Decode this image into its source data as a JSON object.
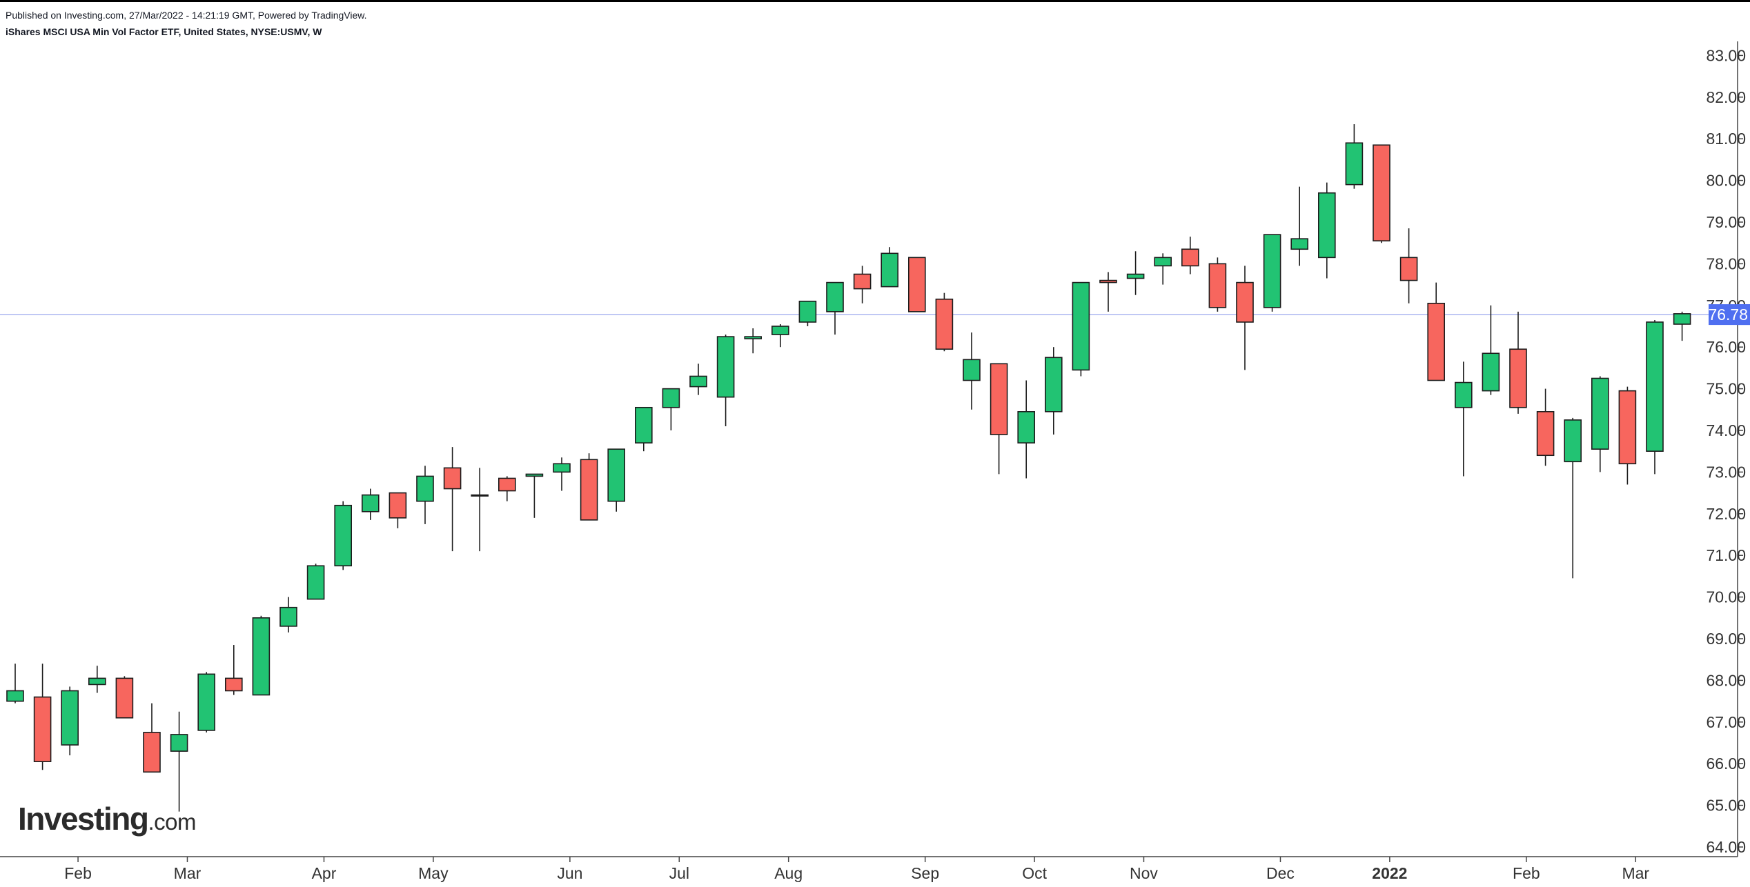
{
  "header": {
    "published": "Published on Investing.com, 27/Mar/2022 - 14:21:19 GMT, Powered by TradingView.",
    "instrument": "iShares MSCI USA Min Vol Factor ETF, United States, NYSE:USMV, W"
  },
  "logo": {
    "main": "Investing",
    "suffix": ".com"
  },
  "colors": {
    "up": "#22c373",
    "down": "#f7665e",
    "outline": "#1c1c1c",
    "price_line": "#aab4f0",
    "price_tag": "#4f6ff0",
    "axis": "#444444",
    "text": "#333333"
  },
  "chart_data": {
    "type": "candlestick",
    "interval": "W",
    "ylim": [
      63.8,
      83.2
    ],
    "y_ticks": [
      "64.00",
      "65.00",
      "66.00",
      "67.00",
      "68.00",
      "69.00",
      "70.00",
      "71.00",
      "72.00",
      "73.00",
      "74.00",
      "75.00",
      "76.00",
      "77.00",
      "78.00",
      "79.00",
      "80.00",
      "81.00",
      "82.00",
      "83.00"
    ],
    "x_ticks": [
      {
        "label": "Feb",
        "index": 2.3,
        "bold": false
      },
      {
        "label": "Mar",
        "index": 6.3,
        "bold": false
      },
      {
        "label": "Apr",
        "index": 11.3,
        "bold": false
      },
      {
        "label": "May",
        "index": 15.3,
        "bold": false
      },
      {
        "label": "Jun",
        "index": 20.3,
        "bold": false
      },
      {
        "label": "Jul",
        "index": 24.3,
        "bold": false
      },
      {
        "label": "Aug",
        "index": 28.3,
        "bold": false
      },
      {
        "label": "Sep",
        "index": 33.3,
        "bold": false
      },
      {
        "label": "Oct",
        "index": 37.3,
        "bold": false
      },
      {
        "label": "Nov",
        "index": 41.3,
        "bold": false
      },
      {
        "label": "Dec",
        "index": 46.3,
        "bold": false
      },
      {
        "label": "2022",
        "index": 50.3,
        "bold": true
      },
      {
        "label": "Feb",
        "index": 55.3,
        "bold": false
      },
      {
        "label": "Mar",
        "index": 59.3,
        "bold": false
      }
    ],
    "last_price": 76.78,
    "last_price_label": "76.78",
    "candles": [
      {
        "o": 67.5,
        "h": 68.4,
        "l": 67.45,
        "c": 67.75
      },
      {
        "o": 67.6,
        "h": 68.4,
        "l": 65.85,
        "c": 66.05
      },
      {
        "o": 66.45,
        "h": 67.85,
        "l": 66.2,
        "c": 67.75
      },
      {
        "o": 67.9,
        "h": 68.35,
        "l": 67.7,
        "c": 68.05
      },
      {
        "o": 68.05,
        "h": 68.1,
        "l": 67.1,
        "c": 67.1
      },
      {
        "o": 66.75,
        "h": 67.45,
        "l": 65.8,
        "c": 65.8
      },
      {
        "o": 66.3,
        "h": 67.25,
        "l": 64.85,
        "c": 66.7
      },
      {
        "o": 66.8,
        "h": 68.2,
        "l": 66.75,
        "c": 68.15
      },
      {
        "o": 68.05,
        "h": 68.85,
        "l": 67.65,
        "c": 67.75
      },
      {
        "o": 67.65,
        "h": 69.55,
        "l": 67.65,
        "c": 69.5
      },
      {
        "o": 69.3,
        "h": 70.0,
        "l": 69.15,
        "c": 69.75
      },
      {
        "o": 69.95,
        "h": 70.8,
        "l": 69.95,
        "c": 70.75
      },
      {
        "o": 70.75,
        "h": 72.3,
        "l": 70.65,
        "c": 72.2
      },
      {
        "o": 72.05,
        "h": 72.6,
        "l": 71.85,
        "c": 72.45
      },
      {
        "o": 72.5,
        "h": 72.5,
        "l": 71.65,
        "c": 71.9
      },
      {
        "o": 72.3,
        "h": 73.15,
        "l": 71.75,
        "c": 72.9
      },
      {
        "o": 73.1,
        "h": 73.6,
        "l": 71.1,
        "c": 72.6
      },
      {
        "o": 72.45,
        "h": 73.1,
        "l": 71.1,
        "c": 72.45
      },
      {
        "o": 72.85,
        "h": 72.9,
        "l": 72.3,
        "c": 72.55
      },
      {
        "o": 72.9,
        "h": 72.9,
        "l": 71.9,
        "c": 72.95
      },
      {
        "o": 73.0,
        "h": 73.35,
        "l": 72.55,
        "c": 73.2
      },
      {
        "o": 73.3,
        "h": 73.45,
        "l": 71.85,
        "c": 71.85
      },
      {
        "o": 72.3,
        "h": 73.55,
        "l": 72.05,
        "c": 73.55
      },
      {
        "o": 73.7,
        "h": 74.55,
        "l": 73.5,
        "c": 74.55
      },
      {
        "o": 74.55,
        "h": 75.0,
        "l": 74.0,
        "c": 75.0
      },
      {
        "o": 75.05,
        "h": 75.6,
        "l": 74.85,
        "c": 75.3
      },
      {
        "o": 74.8,
        "h": 76.3,
        "l": 74.1,
        "c": 76.25
      },
      {
        "o": 76.2,
        "h": 76.45,
        "l": 75.85,
        "c": 76.25
      },
      {
        "o": 76.3,
        "h": 76.55,
        "l": 76.0,
        "c": 76.5
      },
      {
        "o": 76.6,
        "h": 77.1,
        "l": 76.5,
        "c": 77.1
      },
      {
        "o": 76.85,
        "h": 77.55,
        "l": 76.3,
        "c": 77.55
      },
      {
        "o": 77.75,
        "h": 77.95,
        "l": 77.05,
        "c": 77.4
      },
      {
        "o": 77.45,
        "h": 78.4,
        "l": 77.45,
        "c": 78.25
      },
      {
        "o": 78.15,
        "h": 78.15,
        "l": 76.85,
        "c": 76.85
      },
      {
        "o": 77.15,
        "h": 77.3,
        "l": 75.9,
        "c": 75.95
      },
      {
        "o": 75.2,
        "h": 76.35,
        "l": 74.5,
        "c": 75.7
      },
      {
        "o": 75.6,
        "h": 75.6,
        "l": 72.95,
        "c": 73.9
      },
      {
        "o": 73.7,
        "h": 75.2,
        "l": 72.85,
        "c": 74.45
      },
      {
        "o": 74.45,
        "h": 76.0,
        "l": 73.9,
        "c": 75.75
      },
      {
        "o": 75.45,
        "h": 77.55,
        "l": 75.3,
        "c": 77.55
      },
      {
        "o": 77.6,
        "h": 77.8,
        "l": 76.85,
        "c": 77.55
      },
      {
        "o": 77.65,
        "h": 78.3,
        "l": 77.25,
        "c": 77.75
      },
      {
        "o": 77.95,
        "h": 78.25,
        "l": 77.5,
        "c": 78.15
      },
      {
        "o": 78.35,
        "h": 78.65,
        "l": 77.75,
        "c": 77.95
      },
      {
        "o": 78.0,
        "h": 78.15,
        "l": 76.85,
        "c": 76.95
      },
      {
        "o": 77.55,
        "h": 77.95,
        "l": 75.45,
        "c": 76.6
      },
      {
        "o": 76.95,
        "h": 78.7,
        "l": 76.85,
        "c": 78.7
      },
      {
        "o": 78.35,
        "h": 79.85,
        "l": 77.95,
        "c": 78.6
      },
      {
        "o": 78.15,
        "h": 79.95,
        "l": 77.65,
        "c": 79.7
      },
      {
        "o": 79.9,
        "h": 81.35,
        "l": 79.8,
        "c": 80.9
      },
      {
        "o": 80.85,
        "h": 80.85,
        "l": 78.5,
        "c": 78.55
      },
      {
        "o": 78.15,
        "h": 78.85,
        "l": 77.05,
        "c": 77.6
      },
      {
        "o": 77.05,
        "h": 77.55,
        "l": 75.2,
        "c": 75.2
      },
      {
        "o": 74.55,
        "h": 75.65,
        "l": 72.9,
        "c": 75.15
      },
      {
        "o": 74.95,
        "h": 77.0,
        "l": 74.85,
        "c": 75.85
      },
      {
        "o": 75.95,
        "h": 76.85,
        "l": 74.4,
        "c": 74.55
      },
      {
        "o": 74.45,
        "h": 75.0,
        "l": 73.15,
        "c": 73.4
      },
      {
        "o": 73.25,
        "h": 74.3,
        "l": 70.45,
        "c": 74.25
      },
      {
        "o": 73.55,
        "h": 75.3,
        "l": 73.0,
        "c": 75.25
      },
      {
        "o": 74.95,
        "h": 75.05,
        "l": 72.7,
        "c": 73.2
      },
      {
        "o": 73.5,
        "h": 76.65,
        "l": 72.95,
        "c": 76.6
      },
      {
        "o": 76.55,
        "h": 76.85,
        "l": 76.15,
        "c": 76.8
      }
    ]
  }
}
